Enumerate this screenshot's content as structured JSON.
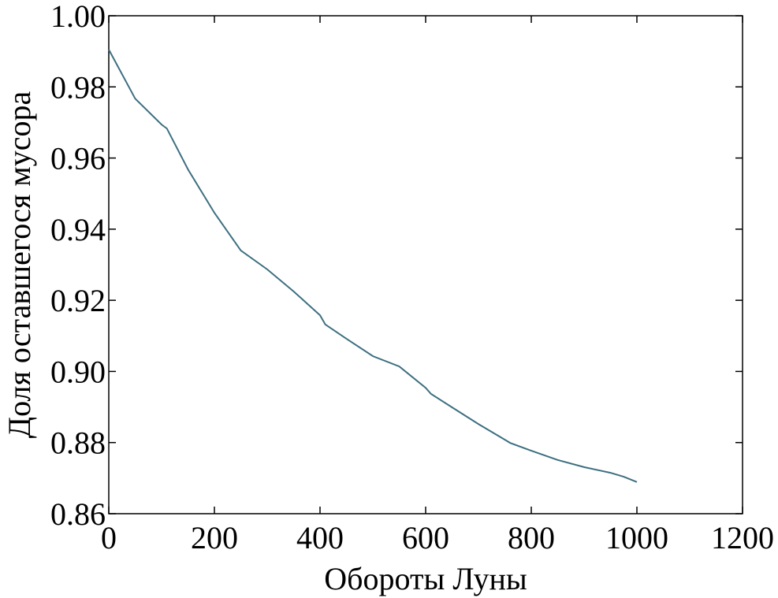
{
  "chart_data": {
    "type": "line",
    "xlabel": "Обороты Луны",
    "ylabel": "Доля оставшегося мусора",
    "x": [
      0,
      50,
      100,
      110,
      150,
      200,
      250,
      300,
      350,
      400,
      410,
      450,
      500,
      550,
      600,
      610,
      650,
      700,
      750,
      760,
      800,
      850,
      900,
      950,
      975,
      1000
    ],
    "series": [
      {
        "color": "#3d6f80",
        "values": [
          0.9905,
          0.9767,
          0.9694,
          0.9683,
          0.9568,
          0.9446,
          0.934,
          0.9287,
          0.9225,
          0.9158,
          0.9132,
          0.9092,
          0.9043,
          0.9014,
          0.8954,
          0.8937,
          0.8899,
          0.8852,
          0.8808,
          0.8799,
          0.8777,
          0.8751,
          0.8731,
          0.8715,
          0.8704,
          0.8689
        ]
      }
    ],
    "xlim": [
      0,
      1200
    ],
    "xticks": [
      0,
      200,
      400,
      600,
      800,
      1000,
      1200
    ],
    "ylim": [
      0.86,
      1.0
    ],
    "yticks": [
      0.86,
      0.88,
      {
        "value": 0.9,
        "label": "0.90"
      },
      0.92,
      0.94,
      0.96,
      0.98,
      {
        "value": 1.0,
        "label": "1.00"
      }
    ]
  }
}
